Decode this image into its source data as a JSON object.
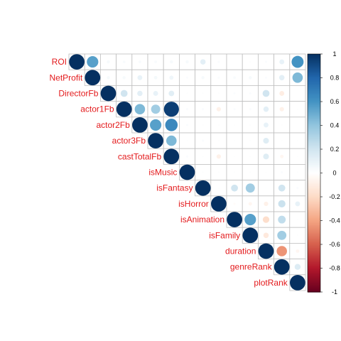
{
  "chart_data": {
    "type": "heatmap",
    "variant": "upper-triangle correlation matrix (circles)",
    "variables": [
      "ROI",
      "NetProfit",
      "DirectorFb",
      "actor1Fb",
      "actor2Fb",
      "actor3Fb",
      "castTotalFb",
      "isMusic",
      "isFantasy",
      "isHorror",
      "isAnimation",
      "isFamily",
      "duration",
      "genreRank",
      "plotRank"
    ],
    "matrix": [
      [
        1,
        0.55,
        0.04,
        0.03,
        0.03,
        0.03,
        0.04,
        0.04,
        0.12,
        0.02,
        0,
        0.01,
        0.02,
        0.1,
        0.6
      ],
      [
        null,
        1,
        0.04,
        0.04,
        0.1,
        0.05,
        0.07,
        0.02,
        0.04,
        0.02,
        0.03,
        0.04,
        0.02,
        0.12,
        0.45
      ],
      [
        null,
        null,
        1,
        0.2,
        0.12,
        0.1,
        0.13,
        0.01,
        0.01,
        0.01,
        0.02,
        0.02,
        0.2,
        -0.1,
        0
      ],
      [
        null,
        null,
        null,
        1,
        0.45,
        0.35,
        0.95,
        0.02,
        0.02,
        -0.08,
        0.02,
        0.02,
        0.12,
        -0.08,
        0.01
      ],
      [
        null,
        null,
        null,
        null,
        1,
        0.55,
        0.65,
        0.02,
        0.01,
        0.01,
        0.01,
        0.01,
        0.1,
        0.01,
        0
      ],
      [
        null,
        null,
        null,
        null,
        null,
        1,
        0.45,
        0.01,
        0.02,
        0.01,
        0.01,
        0.01,
        0.14,
        0.01,
        0.01
      ],
      [
        null,
        null,
        null,
        null,
        null,
        null,
        1,
        0.02,
        0.01,
        -0.08,
        0.01,
        0.01,
        0.14,
        -0.05,
        0.01
      ],
      [
        null,
        null,
        null,
        null,
        null,
        null,
        null,
        1,
        0.01,
        0.01,
        0.01,
        0.01,
        0.01,
        0.02,
        0.01
      ],
      [
        null,
        null,
        null,
        null,
        null,
        null,
        null,
        null,
        1,
        0.01,
        0.2,
        0.35,
        0.01,
        0.2,
        0.02
      ],
      [
        null,
        null,
        null,
        null,
        null,
        null,
        null,
        null,
        null,
        1,
        -0.02,
        -0.05,
        -0.08,
        0.22,
        0.1
      ],
      [
        null,
        null,
        null,
        null,
        null,
        null,
        null,
        null,
        null,
        null,
        1,
        0.55,
        -0.18,
        0.25,
        0.01
      ],
      [
        null,
        null,
        null,
        null,
        null,
        null,
        null,
        null,
        null,
        null,
        null,
        1,
        -0.12,
        0.35,
        0.01
      ],
      [
        null,
        null,
        null,
        null,
        null,
        null,
        null,
        null,
        null,
        null,
        null,
        null,
        1,
        -0.45,
        -0.05
      ],
      [
        null,
        null,
        null,
        null,
        null,
        null,
        null,
        null,
        null,
        null,
        null,
        null,
        null,
        1,
        0.15
      ],
      [
        null,
        null,
        null,
        null,
        null,
        null,
        null,
        null,
        null,
        null,
        null,
        null,
        null,
        null,
        1
      ]
    ],
    "colorbar": {
      "min": -1,
      "max": 1,
      "ticks": [
        "-1",
        "-0.8",
        "-0.6",
        "-0.4",
        "-0.2",
        "0",
        "0.2",
        "0.4",
        "0.6",
        "0.8",
        "1"
      ],
      "palette": [
        "#67001f",
        "#b2182b",
        "#d6604d",
        "#f4a582",
        "#fddbc7",
        "#ffffff",
        "#d1e5f0",
        "#92c5de",
        "#4393c3",
        "#2166ac",
        "#053061"
      ]
    },
    "label_color": "#e31a1c",
    "grid": true,
    "legend": "colorbar-right"
  }
}
